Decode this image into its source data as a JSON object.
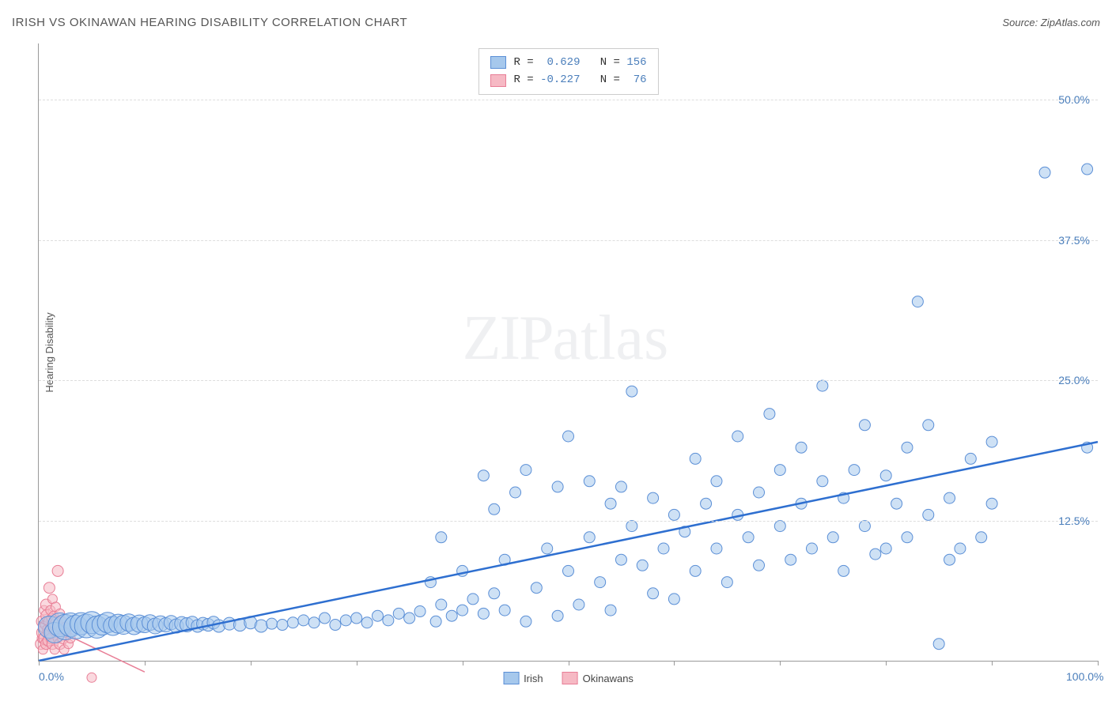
{
  "title": "IRISH VS OKINAWAN HEARING DISABILITY CORRELATION CHART",
  "source_label": "Source: ZipAtlas.com",
  "y_axis_label": "Hearing Disability",
  "watermark": {
    "bold": "ZIP",
    "light": "atlas"
  },
  "chart": {
    "type": "scatter",
    "xlim": [
      0,
      100
    ],
    "ylim": [
      0,
      55
    ],
    "x_ticks_pct": [
      0,
      10,
      20,
      30,
      40,
      50,
      60,
      70,
      80,
      90,
      100
    ],
    "x_labels": [
      {
        "pct": 0,
        "text": "0.0%"
      },
      {
        "pct": 100,
        "text": "100.0%"
      }
    ],
    "y_gridlines": [
      {
        "val": 12.5,
        "label": "12.5%"
      },
      {
        "val": 25.0,
        "label": "25.0%"
      },
      {
        "val": 37.5,
        "label": "37.5%"
      },
      {
        "val": 50.0,
        "label": "50.0%"
      }
    ],
    "series": {
      "irish": {
        "label": "Irish",
        "marker_fill": "#a6c8ec",
        "marker_stroke": "#5b8fd6",
        "marker_fill_opacity": 0.55,
        "radius_min": 6,
        "radius_max": 16,
        "trend_color": "#2e6fd0",
        "trend_width": 2.5,
        "trend": {
          "x1": 0,
          "y1": 0,
          "x2": 100,
          "y2": 19.5
        },
        "R": "0.629",
        "N": "156",
        "points": [
          [
            1,
            3,
            14
          ],
          [
            1.5,
            2.5,
            13
          ],
          [
            2,
            3.2,
            15
          ],
          [
            2.5,
            3,
            16
          ],
          [
            3,
            3.2,
            15
          ],
          [
            3.5,
            3,
            15
          ],
          [
            4,
            3.3,
            14
          ],
          [
            4.5,
            3.1,
            15
          ],
          [
            5,
            3.4,
            14
          ],
          [
            5.5,
            3,
            14
          ],
          [
            6,
            3.2,
            13
          ],
          [
            6.5,
            3.4,
            13
          ],
          [
            7,
            3.1,
            12
          ],
          [
            7.5,
            3.3,
            12
          ],
          [
            8,
            3.2,
            12
          ],
          [
            8.5,
            3.4,
            11
          ],
          [
            9,
            3.1,
            11
          ],
          [
            9.5,
            3.3,
            11
          ],
          [
            10,
            3.2,
            10
          ],
          [
            10.5,
            3.4,
            10
          ],
          [
            11,
            3.1,
            10
          ],
          [
            11.5,
            3.3,
            10
          ],
          [
            12,
            3.2,
            9
          ],
          [
            12.5,
            3.4,
            9
          ],
          [
            13,
            3.1,
            9
          ],
          [
            13.5,
            3.3,
            9
          ],
          [
            14,
            3.2,
            9
          ],
          [
            14.5,
            3.4,
            8
          ],
          [
            15,
            3.1,
            8
          ],
          [
            15.5,
            3.3,
            8
          ],
          [
            16,
            3.2,
            8
          ],
          [
            16.5,
            3.4,
            8
          ],
          [
            17,
            3.1,
            8
          ],
          [
            18,
            3.3,
            8
          ],
          [
            19,
            3.2,
            8
          ],
          [
            20,
            3.4,
            8
          ],
          [
            21,
            3.1,
            8
          ],
          [
            22,
            3.3,
            7
          ],
          [
            23,
            3.2,
            7
          ],
          [
            24,
            3.4,
            7
          ],
          [
            25,
            3.6,
            7
          ],
          [
            26,
            3.4,
            7
          ],
          [
            27,
            3.8,
            7
          ],
          [
            28,
            3.2,
            7
          ],
          [
            29,
            3.6,
            7
          ],
          [
            30,
            3.8,
            7
          ],
          [
            31,
            3.4,
            7
          ],
          [
            32,
            4.0,
            7
          ],
          [
            33,
            3.6,
            7
          ],
          [
            34,
            4.2,
            7
          ],
          [
            35,
            3.8,
            7
          ],
          [
            36,
            4.4,
            7
          ],
          [
            37,
            7.0,
            7
          ],
          [
            37.5,
            3.5,
            7
          ],
          [
            38,
            5.0,
            7
          ],
          [
            38,
            11,
            7
          ],
          [
            39,
            4.0,
            7
          ],
          [
            40,
            4.5,
            7
          ],
          [
            40,
            8.0,
            7
          ],
          [
            41,
            5.5,
            7
          ],
          [
            42,
            4.2,
            7
          ],
          [
            42,
            16.5,
            7
          ],
          [
            43,
            6.0,
            7
          ],
          [
            43,
            13.5,
            7
          ],
          [
            44,
            9.0,
            7
          ],
          [
            44,
            4.5,
            7
          ],
          [
            45,
            15,
            7
          ],
          [
            46,
            3.5,
            7
          ],
          [
            46,
            17,
            7
          ],
          [
            47,
            6.5,
            7
          ],
          [
            48,
            10,
            7
          ],
          [
            49,
            4.0,
            7
          ],
          [
            49,
            15.5,
            7
          ],
          [
            50,
            8.0,
            7
          ],
          [
            50,
            20,
            7
          ],
          [
            51,
            5.0,
            7
          ],
          [
            52,
            11,
            7
          ],
          [
            52,
            16,
            7
          ],
          [
            53,
            7.0,
            7
          ],
          [
            54,
            14,
            7
          ],
          [
            54,
            4.5,
            7
          ],
          [
            55,
            15.5,
            7
          ],
          [
            55,
            9.0,
            7
          ],
          [
            56,
            12,
            7
          ],
          [
            56,
            24,
            7
          ],
          [
            57,
            8.5,
            7
          ],
          [
            58,
            14.5,
            7
          ],
          [
            58,
            6.0,
            7
          ],
          [
            59,
            10,
            7
          ],
          [
            60,
            13,
            7
          ],
          [
            60,
            5.5,
            7
          ],
          [
            61,
            11.5,
            7
          ],
          [
            62,
            8.0,
            7
          ],
          [
            62,
            18,
            7
          ],
          [
            63,
            14,
            7
          ],
          [
            64,
            10,
            7
          ],
          [
            64,
            16,
            7
          ],
          [
            65,
            7.0,
            7
          ],
          [
            66,
            13,
            7
          ],
          [
            66,
            20,
            7
          ],
          [
            67,
            11,
            7
          ],
          [
            68,
            15,
            7
          ],
          [
            68,
            8.5,
            7
          ],
          [
            69,
            22,
            7
          ],
          [
            70,
            12,
            7
          ],
          [
            70,
            17,
            7
          ],
          [
            71,
            9.0,
            7
          ],
          [
            72,
            14,
            7
          ],
          [
            72,
            19,
            7
          ],
          [
            73,
            10,
            7
          ],
          [
            74,
            16,
            7
          ],
          [
            74,
            24.5,
            7
          ],
          [
            75,
            11,
            7
          ],
          [
            76,
            14.5,
            7
          ],
          [
            76,
            8.0,
            7
          ],
          [
            77,
            17,
            7
          ],
          [
            78,
            12,
            7
          ],
          [
            78,
            21,
            7
          ],
          [
            79,
            9.5,
            7
          ],
          [
            80,
            16.5,
            7
          ],
          [
            80,
            10,
            7
          ],
          [
            81,
            14,
            7
          ],
          [
            82,
            11,
            7
          ],
          [
            82,
            19,
            7
          ],
          [
            83,
            32,
            7
          ],
          [
            84,
            13,
            7
          ],
          [
            84,
            21,
            7
          ],
          [
            85,
            1.5,
            7
          ],
          [
            86,
            9.0,
            7
          ],
          [
            86,
            14.5,
            7
          ],
          [
            87,
            10,
            7
          ],
          [
            88,
            18,
            7
          ],
          [
            89,
            11,
            7
          ],
          [
            90,
            14,
            7
          ],
          [
            90,
            19.5,
            7
          ],
          [
            95,
            43.5,
            7
          ],
          [
            99,
            43.8,
            7
          ],
          [
            99,
            19,
            7
          ]
        ]
      },
      "okinawan": {
        "label": "Okinawans",
        "marker_fill": "#f6b9c4",
        "marker_stroke": "#e87e96",
        "marker_fill_opacity": 0.55,
        "radius_min": 5,
        "radius_max": 10,
        "trend_color": "#e87e96",
        "trend_width": 1.5,
        "trend": {
          "x1": 0,
          "y1": 3.5,
          "x2": 10,
          "y2": -1
        },
        "R": "-0.227",
        "N": "76",
        "points": [
          [
            0.2,
            1.5,
            7
          ],
          [
            0.3,
            2.0,
            6
          ],
          [
            0.3,
            3.5,
            7
          ],
          [
            0.4,
            2.5,
            8
          ],
          [
            0.4,
            1.0,
            6
          ],
          [
            0.5,
            3.0,
            7
          ],
          [
            0.5,
            4.5,
            6
          ],
          [
            0.6,
            2.0,
            8
          ],
          [
            0.6,
            3.2,
            6
          ],
          [
            0.7,
            1.5,
            7
          ],
          [
            0.7,
            5.0,
            7
          ],
          [
            0.8,
            2.8,
            6
          ],
          [
            0.8,
            4.0,
            8
          ],
          [
            0.9,
            3.5,
            6
          ],
          [
            0.9,
            1.8,
            7
          ],
          [
            1.0,
            2.5,
            8
          ],
          [
            1.0,
            6.5,
            7
          ],
          [
            1.1,
            3.0,
            6
          ],
          [
            1.1,
            4.5,
            6
          ],
          [
            1.2,
            2.0,
            7
          ],
          [
            1.2,
            3.8,
            6
          ],
          [
            1.3,
            1.5,
            7
          ],
          [
            1.3,
            5.5,
            6
          ],
          [
            1.4,
            2.8,
            7
          ],
          [
            1.4,
            4.0,
            6
          ],
          [
            1.5,
            3.2,
            7
          ],
          [
            1.5,
            1.0,
            6
          ],
          [
            1.6,
            2.5,
            6
          ],
          [
            1.6,
            4.8,
            6
          ],
          [
            1.7,
            3.5,
            7
          ],
          [
            1.8,
            2.0,
            6
          ],
          [
            1.8,
            8.0,
            7
          ],
          [
            1.9,
            3.0,
            6
          ],
          [
            2.0,
            1.5,
            7
          ],
          [
            2.0,
            4.2,
            6
          ],
          [
            2.1,
            2.8,
            6
          ],
          [
            2.2,
            3.5,
            6
          ],
          [
            2.3,
            2.0,
            7
          ],
          [
            2.4,
            1.0,
            6
          ],
          [
            2.5,
            3.0,
            6
          ],
          [
            2.6,
            2.5,
            6
          ],
          [
            2.8,
            1.5,
            6
          ],
          [
            3.0,
            2.0,
            6
          ],
          [
            5.0,
            -1.5,
            6
          ]
        ]
      }
    }
  },
  "colors": {
    "text_gray": "#555555",
    "axis_gray": "#999999",
    "grid_dash": "#dddddd",
    "blue_text": "#4a7ebb",
    "legend_border": "#cccccc"
  }
}
